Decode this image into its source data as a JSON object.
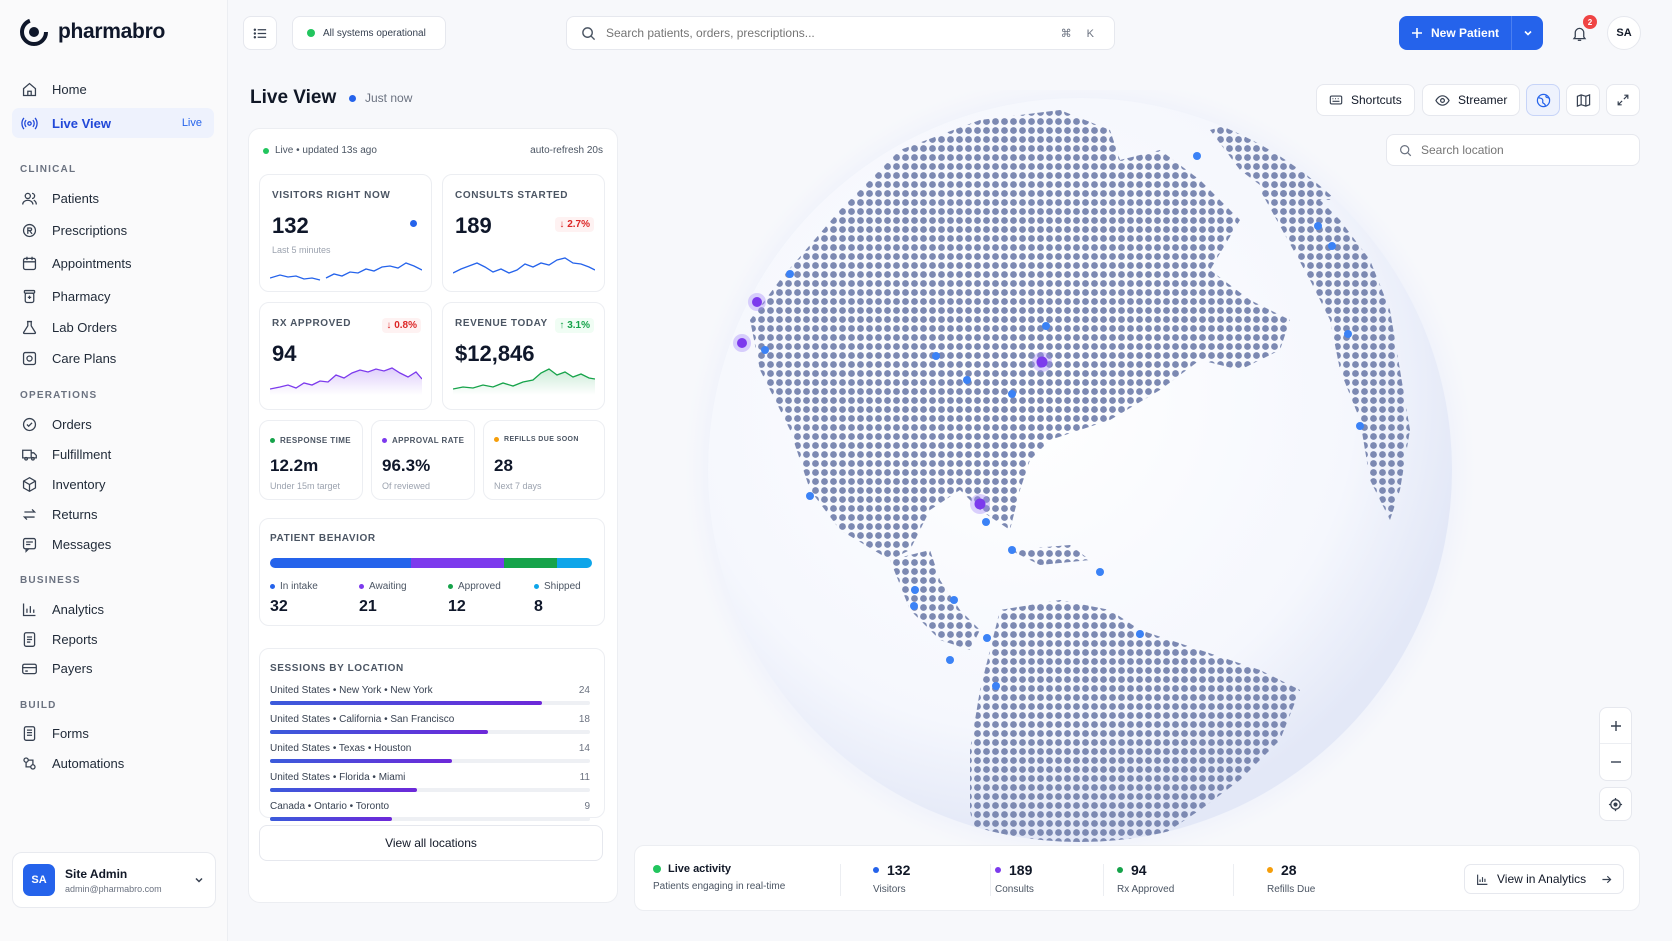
{
  "app": {
    "brand": "pharmabro"
  },
  "sidebar": {
    "home": "Home",
    "live_view": "Live View",
    "live_pill": "Live",
    "sections": {
      "clinical": "CLINICAL",
      "operations": "OPERATIONS",
      "business": "BUSINESS",
      "build": "BUILD"
    },
    "clinical": [
      "Patients",
      "Prescriptions",
      "Appointments",
      "Pharmacy",
      "Lab Orders",
      "Care Plans"
    ],
    "operations": [
      "Orders",
      "Fulfillment",
      "Inventory",
      "Returns",
      "Messages"
    ],
    "business": [
      "Analytics",
      "Reports",
      "Payers"
    ],
    "build": [
      "Forms",
      "Automations"
    ],
    "user": {
      "initials": "SA",
      "name": "Site Admin",
      "email": "admin@pharmabro.com"
    }
  },
  "topbar": {
    "status": "All systems operational",
    "status_color": "#22c55e",
    "search_placeholder": "Search patients, orders, prescriptions...",
    "shortcut": "⌘ K",
    "new_patient": "New Patient",
    "notifications": "2",
    "avatar": "SA"
  },
  "page": {
    "title": "Live View",
    "updated": "Just now"
  },
  "panel": {
    "live_status": "Live • updated 13s ago",
    "auto_refresh": "auto-refresh 20s",
    "kpis": {
      "visitors": {
        "label": "VISITORS RIGHT NOW",
        "value": "132",
        "sub": "Last 5 minutes"
      },
      "consults": {
        "label": "CONSULTS STARTED",
        "value": "189",
        "delta": "↓ 2.7%"
      },
      "rx": {
        "label": "RX APPROVED",
        "value": "94",
        "delta": "↓ 0.8%"
      },
      "revenue": {
        "label": "REVENUE TODAY",
        "value": "$12,846",
        "delta": "↑ 3.1%"
      }
    },
    "metrics": {
      "response": {
        "label": "RESPONSE TIME",
        "value": "12.2m",
        "sub": "Under 15m target"
      },
      "approval": {
        "label": "APPROVAL RATE",
        "value": "96.3%",
        "sub": "Of reviewed"
      },
      "refills": {
        "label": "REFILLS DUE SOON",
        "value": "28",
        "sub": "Next 7 days"
      }
    },
    "behavior": {
      "title": "PATIENT BEHAVIOR",
      "stats": [
        {
          "label": "In intake",
          "value": "32",
          "color": "#2563eb"
        },
        {
          "label": "Awaiting",
          "value": "21",
          "color": "#7c3aed"
        },
        {
          "label": "Approved",
          "value": "12",
          "color": "#16a34a"
        },
        {
          "label": "Shipped",
          "value": "8",
          "color": "#0ea5e9"
        }
      ]
    },
    "locations": {
      "title": "SESSIONS BY LOCATION",
      "rows": [
        {
          "name": "United States • New York • New York",
          "count": "24",
          "fraction": 0.85
        },
        {
          "name": "United States • California • San Francisco",
          "count": "18",
          "fraction": 0.68
        },
        {
          "name": "United States • Texas • Houston",
          "count": "14",
          "fraction": 0.57
        },
        {
          "name": "United States • Florida • Miami",
          "count": "11",
          "fraction": 0.46
        },
        {
          "name": "Canada • Ontario • Toronto",
          "count": "9",
          "fraction": 0.38
        }
      ],
      "view_all": "View all locations"
    }
  },
  "map": {
    "shortcuts": "Shortcuts",
    "streamer": "Streamer",
    "search_placeholder": "Search location"
  },
  "bottom": {
    "live_title": "Live activity",
    "live_sub": "Patients engaging in real-time",
    "stats": [
      {
        "value": "132",
        "label": "Visitors",
        "color": "#2563eb"
      },
      {
        "value": "189",
        "label": "Consults",
        "color": "#7c3aed"
      },
      {
        "value": "94",
        "label": "Rx Approved",
        "color": "#16a34a"
      },
      {
        "value": "28",
        "label": "Refills Due",
        "color": "#f59e0b"
      }
    ],
    "view_analytics": "View in Analytics"
  }
}
